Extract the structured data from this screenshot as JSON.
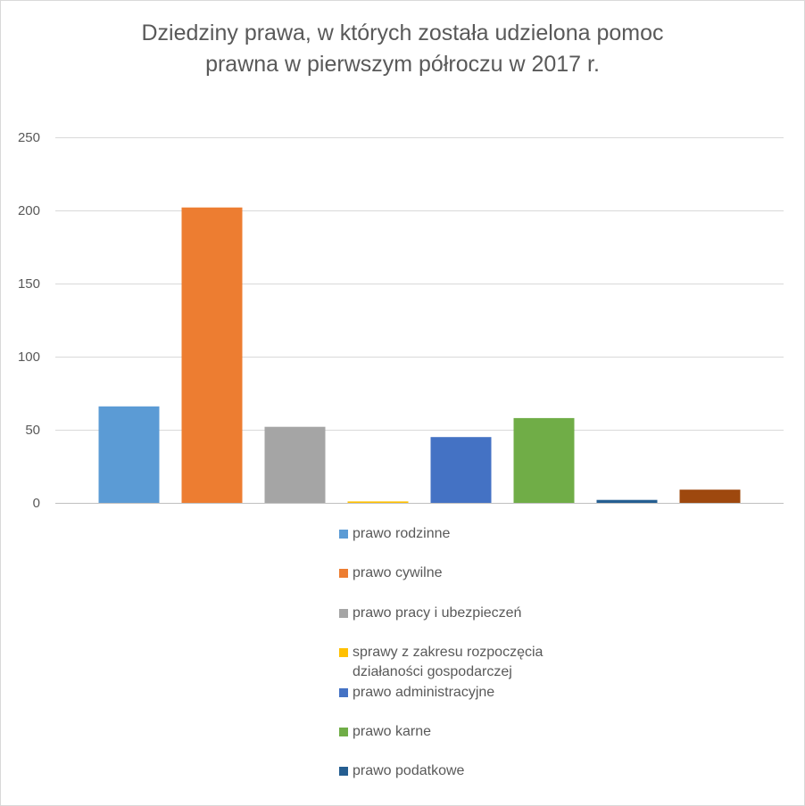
{
  "chart_data": {
    "type": "bar",
    "title_lines": [
      "Dziedziny prawa, w których została udzielona pomoc",
      "prawna w pierwszym półroczu w 2017 r."
    ],
    "xlabel": "",
    "ylabel": "",
    "ylim": [
      0,
      250
    ],
    "yticks": [
      0,
      50,
      100,
      150,
      200,
      250
    ],
    "grid": true,
    "legend_position": "bottom",
    "series": [
      {
        "name": "prawo rodzinne",
        "value": 66,
        "color": "#5b9bd5"
      },
      {
        "name": "prawo cywilne",
        "value": 202,
        "color": "#ed7d31"
      },
      {
        "name": "prawo pracy i ubezpieczeń",
        "value": 52,
        "color": "#a5a5a5"
      },
      {
        "name": "sprawy z zakresu rozpoczęcia działaności gospodarczej",
        "value": 1,
        "color": "#ffc000"
      },
      {
        "name": "prawo administracyjne",
        "value": 45,
        "color": "#4472c4"
      },
      {
        "name": "prawo karne",
        "value": 58,
        "color": "#70ad47"
      },
      {
        "name": "prawo podatkowe",
        "value": 2,
        "color": "#255e91"
      },
      {
        "name": "",
        "value": 9,
        "color": "#9e480e"
      }
    ]
  }
}
